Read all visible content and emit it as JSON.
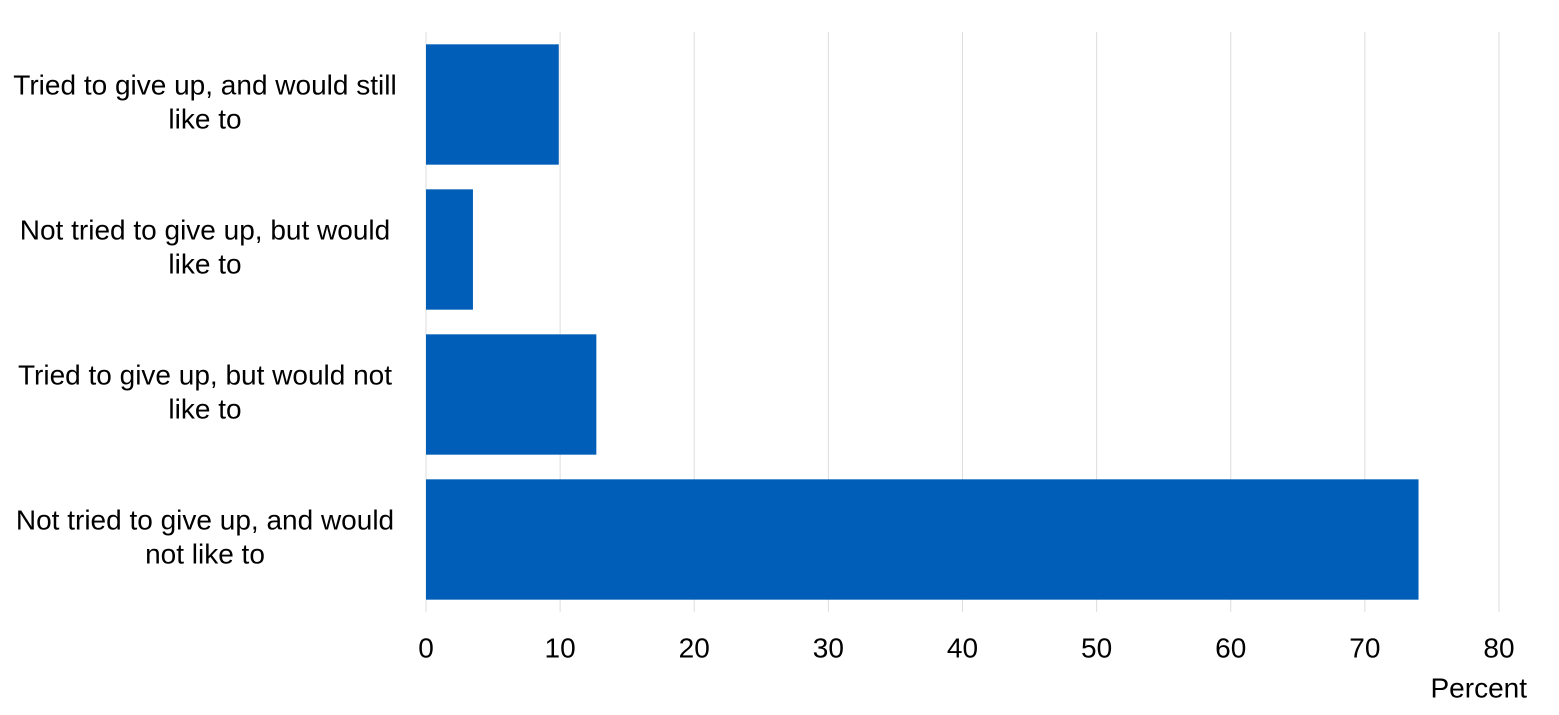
{
  "chart_data": {
    "type": "bar",
    "orientation": "horizontal",
    "categories": [
      "Tried to give up, and would still like to",
      "Not tried to give up, but would like to",
      "Tried to give up, but would not like to",
      "Not tried to give up, and would not like to"
    ],
    "values": [
      9.9,
      3.5,
      12.7,
      74.0
    ],
    "color": "#005eb8",
    "xlabel": "Percent",
    "xlim": [
      0,
      80
    ],
    "xticks": [
      0,
      10,
      20,
      30,
      40,
      50,
      60,
      70,
      80
    ],
    "grid": true
  }
}
